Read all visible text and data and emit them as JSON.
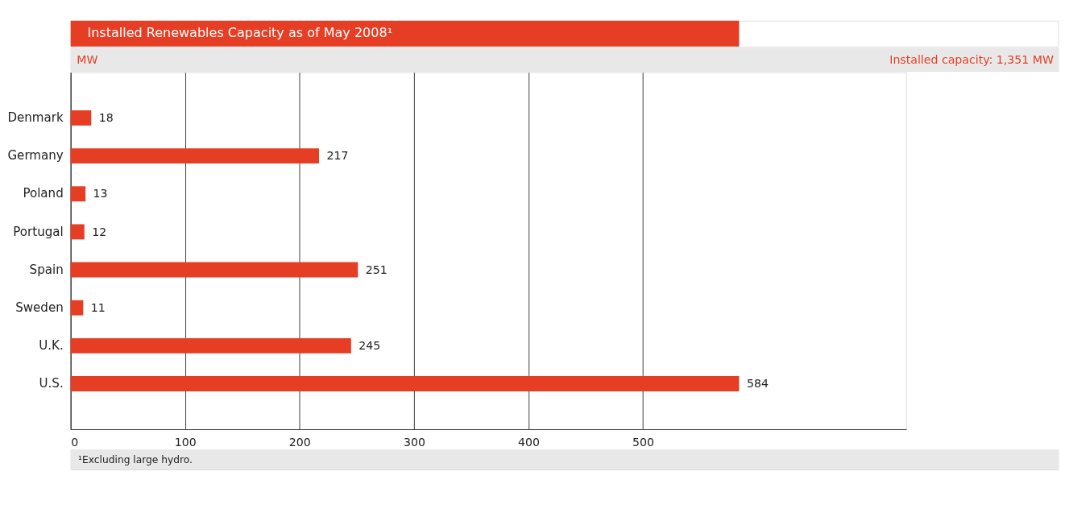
{
  "chart_data": {
    "type": "bar",
    "orientation": "horizontal",
    "title": "Installed Renewables Capacity as of May 2008¹",
    "subtitle": "MW",
    "annotations": [
      "Installed capacity: 1,351 MW",
      "¹Excluding large hydro."
    ],
    "categories": [
      "Denmark",
      "Germany",
      "Poland",
      "Portugal",
      "Spain",
      "Sweden",
      "U.K.",
      "U.S."
    ],
    "values": [
      18,
      217,
      13,
      12,
      251,
      11,
      245,
      584
    ],
    "color": "#e53e25",
    "xlim": [
      0,
      730
    ],
    "xticks": [
      0,
      100,
      200,
      300,
      400,
      500
    ],
    "grid": "x",
    "data_labels": true
  }
}
